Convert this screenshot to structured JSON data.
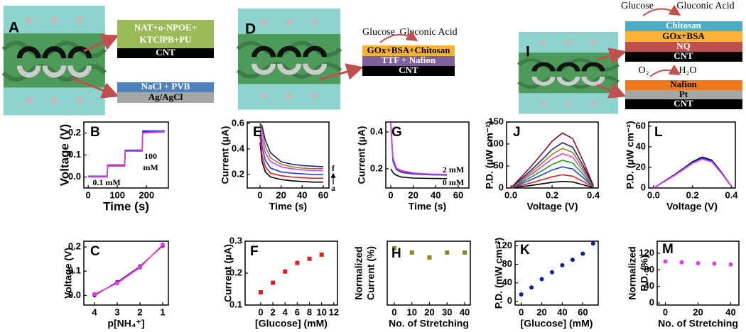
{
  "diagrams": [
    {
      "panel": "A",
      "sensor_layers": [
        "NAT+o-NPOE+",
        "KTClPB+PU",
        "CNT"
      ],
      "reference_layers": [
        "NaCl + PVB",
        "Ag/AgCl"
      ]
    },
    {
      "panel": "D",
      "reaction": [
        "Glucose",
        "Gluconic Acid"
      ],
      "layers": [
        "GOx+BSA+Chitosan",
        "TTF + Nafion",
        "CNT"
      ]
    },
    {
      "panel": "I",
      "anode_reaction": [
        "Glucose",
        "Gluconic Acid"
      ],
      "anode_layers": [
        "Chitosan",
        "GOx+BSA",
        "NQ",
        "CNT"
      ],
      "cathode_reaction": [
        "O₂",
        "H₂O"
      ],
      "cathode_layers": [
        "Nafion",
        "Pt",
        "CNT"
      ]
    }
  ],
  "chart_data": [
    {
      "type": "line",
      "panel": "B",
      "xlabel": "Time (s)",
      "ylabel": "Voltage (V)",
      "x": [
        0,
        65,
        67,
        125,
        127,
        185,
        187,
        262
      ],
      "series": [
        {
          "color": "#000000",
          "values": [
            0.002,
            0.002,
            0.055,
            0.055,
            0.12,
            0.12,
            0.205,
            0.208
          ]
        },
        {
          "color": "#e02020",
          "values": [
            0.0,
            0.0,
            0.05,
            0.05,
            0.118,
            0.118,
            0.2,
            0.205
          ]
        },
        {
          "color": "#2040e0",
          "values": [
            0.004,
            0.004,
            0.052,
            0.052,
            0.122,
            0.122,
            0.21,
            0.21
          ]
        },
        {
          "color": "#e040e0",
          "values": [
            0.001,
            0.001,
            0.054,
            0.054,
            0.117,
            0.117,
            0.203,
            0.206
          ]
        }
      ],
      "xlim": [
        -15,
        275
      ],
      "ylim": [
        -0.05,
        0.25
      ],
      "xticks": [
        0,
        100,
        200
      ],
      "yticks": [
        {
          "value": 0,
          "label": "0.0"
        },
        0.1,
        0.2
      ],
      "annotations": [
        "100",
        "mM",
        "0.1 mM"
      ]
    },
    {
      "type": "line",
      "panel": "C",
      "xlabel": "p[NH₄⁺]",
      "ylabel": "Voltage (V)",
      "x": [
        4,
        3,
        2,
        1
      ],
      "series": [
        {
          "color": "#6a2a8a",
          "values": [
            0.0,
            0.055,
            0.12,
            0.205
          ],
          "markers": true
        },
        {
          "color": "#e040e0",
          "values": [
            0.005,
            0.05,
            0.115,
            0.21
          ],
          "markers": true
        }
      ],
      "xlim": [
        4.47,
        0.75
      ],
      "ylim": [
        -0.04,
        0.224
      ],
      "xticks": [
        4,
        3,
        2,
        1
      ],
      "yticks": [
        {
          "value": 0,
          "label": "0.0"
        },
        0.1,
        0.2
      ]
    },
    {
      "type": "line",
      "panel": "E",
      "xlabel": "Time (s)",
      "ylabel": "Current (µA)",
      "x": [
        0,
        2,
        5,
        10,
        20,
        30,
        40,
        50,
        60
      ],
      "series": [
        {
          "color": "#000000",
          "values": [
            0.45,
            0.3,
            0.22,
            0.18,
            0.16,
            0.15,
            0.145,
            0.14,
            0.14
          ]
        },
        {
          "color": "#e02020",
          "values": [
            0.5,
            0.35,
            0.26,
            0.21,
            0.19,
            0.18,
            0.175,
            0.17,
            0.17
          ]
        },
        {
          "color": "#2040e0",
          "values": [
            0.55,
            0.42,
            0.31,
            0.25,
            0.22,
            0.21,
            0.205,
            0.2,
            0.2
          ]
        },
        {
          "color": "#e040e0",
          "values": [
            0.6,
            0.48,
            0.37,
            0.3,
            0.26,
            0.245,
            0.235,
            0.23,
            0.23
          ]
        },
        {
          "color": "#8a8a20",
          "values": [
            0.6,
            0.54,
            0.42,
            0.33,
            0.28,
            0.26,
            0.25,
            0.245,
            0.245
          ]
        },
        {
          "color": "#202080",
          "values": [
            0.6,
            0.58,
            0.47,
            0.37,
            0.3,
            0.28,
            0.27,
            0.265,
            0.26
          ]
        }
      ],
      "xlim": [
        -12.1,
        65.4
      ],
      "ylim": [
        0.094,
        0.611
      ],
      "xticks": [
        0,
        20,
        40,
        60
      ],
      "yticks": [
        0.2,
        0.4,
        0.6
      ],
      "annotations": [
        "f",
        "a"
      ]
    },
    {
      "type": "scatter",
      "panel": "F",
      "xlabel": "[Glucose] (mM)",
      "ylabel": "Current (µA)",
      "marker": "square",
      "x": [
        0,
        2,
        4,
        6,
        8,
        10
      ],
      "series": [
        {
          "color": "#e02020",
          "values": [
            0.14,
            0.17,
            0.205,
            0.232,
            0.245,
            0.258
          ]
        }
      ],
      "xlim": [
        -2.56,
        12.6
      ],
      "ylim": [
        0.1,
        0.3
      ],
      "xticks": [
        0,
        2,
        4,
        6,
        8,
        10,
        12
      ],
      "yticks": [
        0.1,
        0.2,
        0.3
      ]
    },
    {
      "type": "line",
      "panel": "G",
      "xlabel": "Time (s)",
      "ylabel": "Current (µA)",
      "x": [
        0,
        2,
        5,
        10,
        20,
        35,
        50
      ],
      "series": [
        {
          "color": "#000000",
          "values": [
            0.2,
            0.18,
            0.165,
            0.155,
            0.15,
            0.148,
            0.147
          ]
        },
        {
          "color": "#e02020",
          "values": [
            0.45,
            0.25,
            0.2,
            0.185,
            0.175,
            0.17,
            0.168
          ]
        },
        {
          "color": "#2040e0",
          "values": [
            0.44,
            0.24,
            0.195,
            0.18,
            0.172,
            0.168,
            0.166
          ]
        },
        {
          "color": "#e040e0",
          "values": [
            0.45,
            0.26,
            0.205,
            0.19,
            0.178,
            0.172,
            0.17
          ]
        }
      ],
      "xlim": [
        -4.4,
        69.5
      ],
      "ylim": [
        0.096,
        0.454
      ],
      "xticks": [
        0,
        20,
        40,
        60
      ],
      "yticks": [
        0.2,
        0.4
      ],
      "annotations": [
        "2 mM",
        "0 mM"
      ]
    },
    {
      "type": "scatter",
      "panel": "H",
      "xlabel": "No. of Stretching",
      "ylabel": [
        "Normalized",
        "Current (%)"
      ],
      "marker": "square",
      "x": [
        0,
        10,
        20,
        30,
        40
      ],
      "series": [
        {
          "color": "#8a8a20",
          "values": [
            100,
            94,
            87,
            94,
            94
          ]
        }
      ],
      "xlim": [
        -4,
        43.2
      ],
      "ylim": [
        20,
        110
      ],
      "xticks": [
        0,
        10,
        20,
        30,
        40
      ],
      "yticks": []
    },
    {
      "type": "line",
      "panel": "J",
      "xlabel": "Voltage (V)",
      "ylabel": "P.D. (µW cm⁻²)",
      "x": [
        0,
        0.05,
        0.1,
        0.15,
        0.2,
        0.25,
        0.3,
        0.35,
        0.4
      ],
      "series": [
        {
          "color": "#000000",
          "values": [
            0,
            3,
            6,
            9.3,
            12.8,
            15,
            13.5,
            7.5,
            0.8
          ]
        },
        {
          "color": "#e02020",
          "values": [
            0,
            6,
            12,
            18.6,
            25.5,
            30,
            27,
            15,
            1.5
          ]
        },
        {
          "color": "#2040e0",
          "values": [
            0,
            9.6,
            19.2,
            29.8,
            40.8,
            48,
            43.2,
            24,
            2.4
          ]
        },
        {
          "color": "#20a020",
          "values": [
            0,
            12.6,
            25.2,
            39.1,
            53.6,
            63,
            56.7,
            31.5,
            3.2
          ]
        },
        {
          "color": "#e040e0",
          "values": [
            0,
            15.6,
            31.2,
            48.4,
            66.3,
            78,
            70.2,
            39,
            3.9
          ]
        },
        {
          "color": "#8a8a20",
          "values": [
            0,
            18,
            36,
            55.8,
            76.5,
            90,
            81,
            45,
            4.5
          ]
        },
        {
          "color": "#202080",
          "values": [
            0,
            20.6,
            41.2,
            63.9,
            87.6,
            103,
            92.7,
            51.5,
            5.2
          ]
        },
        {
          "color": "#801020",
          "values": [
            0,
            25,
            50,
            77.5,
            106.3,
            125,
            112.5,
            62.5,
            6.3
          ]
        }
      ],
      "xlim": [
        -0.021,
        0.424
      ],
      "ylim": [
        0,
        150
      ],
      "xticks": [
        {
          "value": 0,
          "label": "0.0"
        },
        0.2,
        0.4
      ],
      "yticks": [
        0,
        50,
        100,
        150
      ]
    },
    {
      "type": "scatter",
      "panel": "K",
      "xlabel": "[Glucose] (mM)",
      "ylabel": "P.D. (mW cm⁻²)",
      "marker": "circle",
      "x": [
        0,
        10,
        20,
        30,
        40,
        50,
        60,
        70
      ],
      "series": [
        {
          "color": "#10209a",
          "values": [
            15,
            30,
            48,
            63,
            78,
            90,
            103,
            125
          ]
        }
      ],
      "xlim": [
        -6,
        75
      ],
      "ylim": [
        -8,
        130
      ],
      "xticks": [
        0,
        20,
        40,
        60
      ],
      "yticks": [
        0,
        40,
        80,
        120
      ]
    },
    {
      "type": "line",
      "panel": "L",
      "xlabel": "Voltage (V)",
      "ylabel": "P.D. (µW cm⁻²)",
      "x": [
        0,
        0.05,
        0.1,
        0.15,
        0.2,
        0.25,
        0.3,
        0.35,
        0.4
      ],
      "series": [
        {
          "color": "#000000",
          "values": [
            0,
            6,
            12,
            18.6,
            25.5,
            30,
            27,
            15,
            1.5
          ]
        },
        {
          "color": "#2040e0",
          "values": [
            0,
            5.8,
            11.6,
            18,
            24.7,
            29,
            26.1,
            14.5,
            1.5
          ]
        },
        {
          "color": "#e040e0",
          "values": [
            0,
            5.6,
            11.2,
            17.4,
            23.8,
            28,
            25.2,
            14,
            1.4
          ]
        }
      ],
      "xlim": [
        -0.025,
        0.42
      ],
      "ylim": [
        0,
        64
      ],
      "xticks": [
        {
          "value": 0,
          "label": "0.0"
        },
        0.2,
        0.4
      ],
      "yticks": [
        0,
        20,
        40,
        60
      ]
    },
    {
      "type": "scatter",
      "panel": "M",
      "xlabel": "No. of Stretching",
      "ylabel": [
        "Normalized",
        "P.D. (%)"
      ],
      "marker": "circle",
      "x": [
        0,
        10,
        20,
        30,
        40
      ],
      "series": [
        {
          "color": "#e040e0",
          "values": [
            100,
            98,
            96,
            95,
            93
          ]
        }
      ],
      "xlim": [
        -5,
        45
      ],
      "ylim": [
        -5,
        149
      ],
      "xticks": [
        0,
        20,
        40
      ],
      "yticks": [
        0,
        40,
        80,
        120
      ]
    }
  ]
}
